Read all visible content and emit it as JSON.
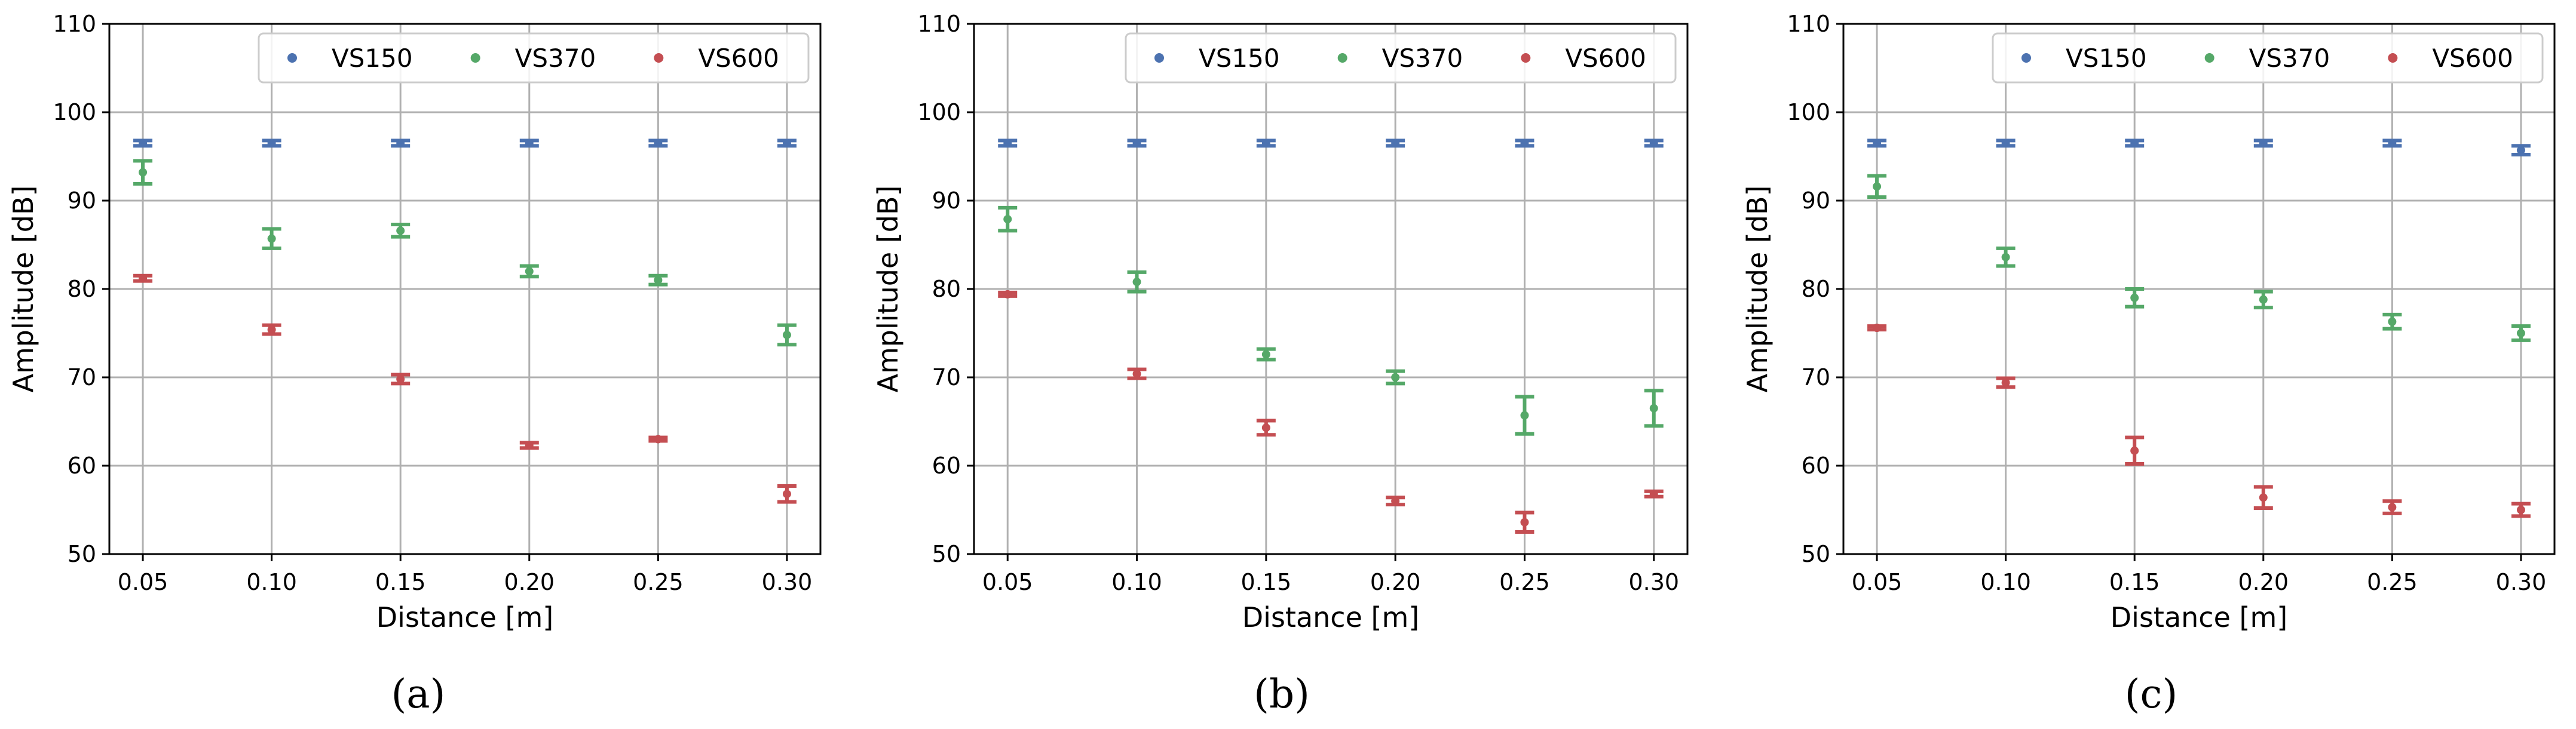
{
  "chart_data": [
    {
      "type": "scatter",
      "panel_label": "(a)",
      "title": "",
      "xlabel": "Distance [m]",
      "ylabel": "Amplitude [dB]",
      "x": [
        0.05,
        0.1,
        0.15,
        0.2,
        0.25,
        0.3
      ],
      "x_tick_labels": [
        "0.05",
        "0.10",
        "0.15",
        "0.20",
        "0.25",
        "0.30"
      ],
      "xlim": [
        0.037,
        0.313
      ],
      "ylim": [
        50,
        110
      ],
      "y_ticks": [
        50,
        60,
        70,
        80,
        90,
        100,
        110
      ],
      "grid": true,
      "legend_position": "top-right",
      "series": [
        {
          "name": "VS150",
          "color": "#4c72b0",
          "values": [
            96.5,
            96.5,
            96.5,
            96.5,
            96.5,
            96.5
          ],
          "errors": [
            0.3,
            0.3,
            0.3,
            0.3,
            0.3,
            0.3
          ]
        },
        {
          "name": "VS370",
          "color": "#55a868",
          "values": [
            93.2,
            85.7,
            86.6,
            82.0,
            81.0,
            74.8
          ],
          "errors": [
            1.3,
            1.1,
            0.7,
            0.6,
            0.5,
            1.1
          ]
        },
        {
          "name": "VS600",
          "color": "#c44e52",
          "values": [
            81.2,
            75.4,
            69.8,
            62.3,
            63.0,
            56.8
          ],
          "errors": [
            0.3,
            0.5,
            0.5,
            0.3,
            0.2,
            0.9
          ]
        }
      ]
    },
    {
      "type": "scatter",
      "panel_label": "(b)",
      "title": "",
      "xlabel": "Distance [m]",
      "ylabel": "Amplitude [dB]",
      "x": [
        0.05,
        0.1,
        0.15,
        0.2,
        0.25,
        0.3
      ],
      "x_tick_labels": [
        "0.05",
        "0.10",
        "0.15",
        "0.20",
        "0.25",
        "0.30"
      ],
      "xlim": [
        0.037,
        0.313
      ],
      "ylim": [
        50,
        110
      ],
      "y_ticks": [
        50,
        60,
        70,
        80,
        90,
        100,
        110
      ],
      "grid": true,
      "legend_position": "top-right",
      "series": [
        {
          "name": "VS150",
          "color": "#4c72b0",
          "values": [
            96.5,
            96.5,
            96.5,
            96.5,
            96.5,
            96.5
          ],
          "errors": [
            0.3,
            0.3,
            0.3,
            0.3,
            0.3,
            0.3
          ]
        },
        {
          "name": "VS370",
          "color": "#55a868",
          "values": [
            87.9,
            80.8,
            72.6,
            70.0,
            65.7,
            66.5
          ],
          "errors": [
            1.3,
            1.1,
            0.6,
            0.7,
            2.1,
            2.0
          ]
        },
        {
          "name": "VS600",
          "color": "#c44e52",
          "values": [
            79.4,
            70.4,
            64.3,
            56.0,
            53.6,
            56.8
          ],
          "errors": [
            0.2,
            0.5,
            0.8,
            0.4,
            1.1,
            0.3
          ]
        }
      ]
    },
    {
      "type": "scatter",
      "panel_label": "(c)",
      "title": "",
      "xlabel": "Distance [m]",
      "ylabel": "Amplitude [dB]",
      "x": [
        0.05,
        0.1,
        0.15,
        0.2,
        0.25,
        0.3
      ],
      "x_tick_labels": [
        "0.05",
        "0.10",
        "0.15",
        "0.20",
        "0.25",
        "0.30"
      ],
      "xlim": [
        0.037,
        0.313
      ],
      "ylim": [
        50,
        110
      ],
      "y_ticks": [
        50,
        60,
        70,
        80,
        90,
        100,
        110
      ],
      "grid": true,
      "legend_position": "top-right",
      "series": [
        {
          "name": "VS150",
          "color": "#4c72b0",
          "values": [
            96.5,
            96.5,
            96.5,
            96.5,
            96.5,
            95.7
          ],
          "errors": [
            0.3,
            0.3,
            0.3,
            0.3,
            0.3,
            0.5
          ]
        },
        {
          "name": "VS370",
          "color": "#55a868",
          "values": [
            91.6,
            83.6,
            79.0,
            78.8,
            76.3,
            75.0
          ],
          "errors": [
            1.2,
            1.0,
            1.0,
            0.9,
            0.8,
            0.8
          ]
        },
        {
          "name": "VS600",
          "color": "#c44e52",
          "values": [
            75.6,
            69.4,
            61.7,
            56.4,
            55.3,
            55.0
          ],
          "errors": [
            0.2,
            0.5,
            1.5,
            1.2,
            0.7,
            0.7
          ]
        }
      ]
    }
  ]
}
